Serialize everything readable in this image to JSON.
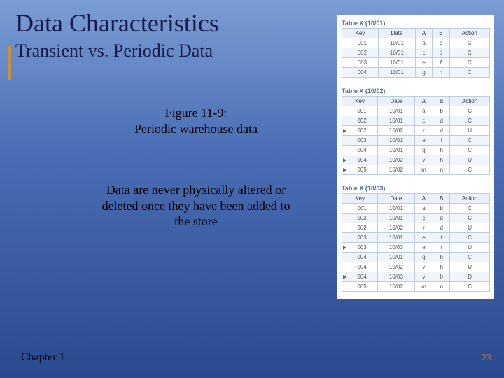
{
  "title": "Data Characteristics",
  "subtitle": "Transient vs. Periodic Data",
  "figure_caption_line1": "Figure 11-9:",
  "figure_caption_line2": "Periodic warehouse data",
  "description": "Data are never physically altered or deleted once they have been added to the store",
  "chapter": "Chapter 1",
  "page_number": "23",
  "tables": [
    {
      "label": "Table X (10/01)",
      "columns": [
        "Key",
        "Date",
        "A",
        "B",
        "Action"
      ],
      "rows": [
        {
          "cells": [
            "001",
            "10/01",
            "a",
            "b",
            "C"
          ],
          "arrow": false,
          "shade": false
        },
        {
          "cells": [
            "002",
            "10/01",
            "c",
            "d",
            "C"
          ],
          "arrow": false,
          "shade": true
        },
        {
          "cells": [
            "003",
            "10/01",
            "e",
            "f",
            "C"
          ],
          "arrow": false,
          "shade": false
        },
        {
          "cells": [
            "004",
            "10/01",
            "g",
            "h",
            "C"
          ],
          "arrow": false,
          "shade": true
        }
      ]
    },
    {
      "label": "Table X (10/02)",
      "columns": [
        "Key",
        "Date",
        "A",
        "B",
        "Action"
      ],
      "rows": [
        {
          "cells": [
            "001",
            "10/01",
            "a",
            "b",
            "C"
          ],
          "arrow": false,
          "shade": false
        },
        {
          "cells": [
            "002",
            "10/01",
            "c",
            "d",
            "C"
          ],
          "arrow": false,
          "shade": true
        },
        {
          "cells": [
            "002",
            "10/02",
            "r",
            "d",
            "U"
          ],
          "arrow": true,
          "shade": false
        },
        {
          "cells": [
            "003",
            "10/01",
            "e",
            "f",
            "C"
          ],
          "arrow": false,
          "shade": true
        },
        {
          "cells": [
            "004",
            "10/01",
            "g",
            "h",
            "C"
          ],
          "arrow": false,
          "shade": false
        },
        {
          "cells": [
            "004",
            "10/02",
            "y",
            "h",
            "U"
          ],
          "arrow": true,
          "shade": true
        },
        {
          "cells": [
            "005",
            "10/02",
            "m",
            "n",
            "C"
          ],
          "arrow": true,
          "shade": false
        }
      ]
    },
    {
      "label": "Table X (10/03)",
      "columns": [
        "Key",
        "Date",
        "A",
        "B",
        "Action"
      ],
      "rows": [
        {
          "cells": [
            "001",
            "10/01",
            "a",
            "b",
            "C"
          ],
          "arrow": false,
          "shade": false
        },
        {
          "cells": [
            "002",
            "10/01",
            "c",
            "d",
            "C"
          ],
          "arrow": false,
          "shade": true
        },
        {
          "cells": [
            "002",
            "10/02",
            "r",
            "d",
            "U"
          ],
          "arrow": false,
          "shade": false
        },
        {
          "cells": [
            "003",
            "10/01",
            "e",
            "f",
            "C"
          ],
          "arrow": false,
          "shade": true
        },
        {
          "cells": [
            "003",
            "10/03",
            "e",
            "t",
            "U"
          ],
          "arrow": true,
          "shade": false
        },
        {
          "cells": [
            "004",
            "10/01",
            "g",
            "h",
            "C"
          ],
          "arrow": false,
          "shade": true
        },
        {
          "cells": [
            "004",
            "10/02",
            "y",
            "h",
            "U"
          ],
          "arrow": false,
          "shade": false
        },
        {
          "cells": [
            "004",
            "10/03",
            "y",
            "h",
            "D"
          ],
          "arrow": true,
          "shade": true
        },
        {
          "cells": [
            "005",
            "10/02",
            "m",
            "n",
            "C"
          ],
          "arrow": false,
          "shade": false
        }
      ]
    }
  ]
}
